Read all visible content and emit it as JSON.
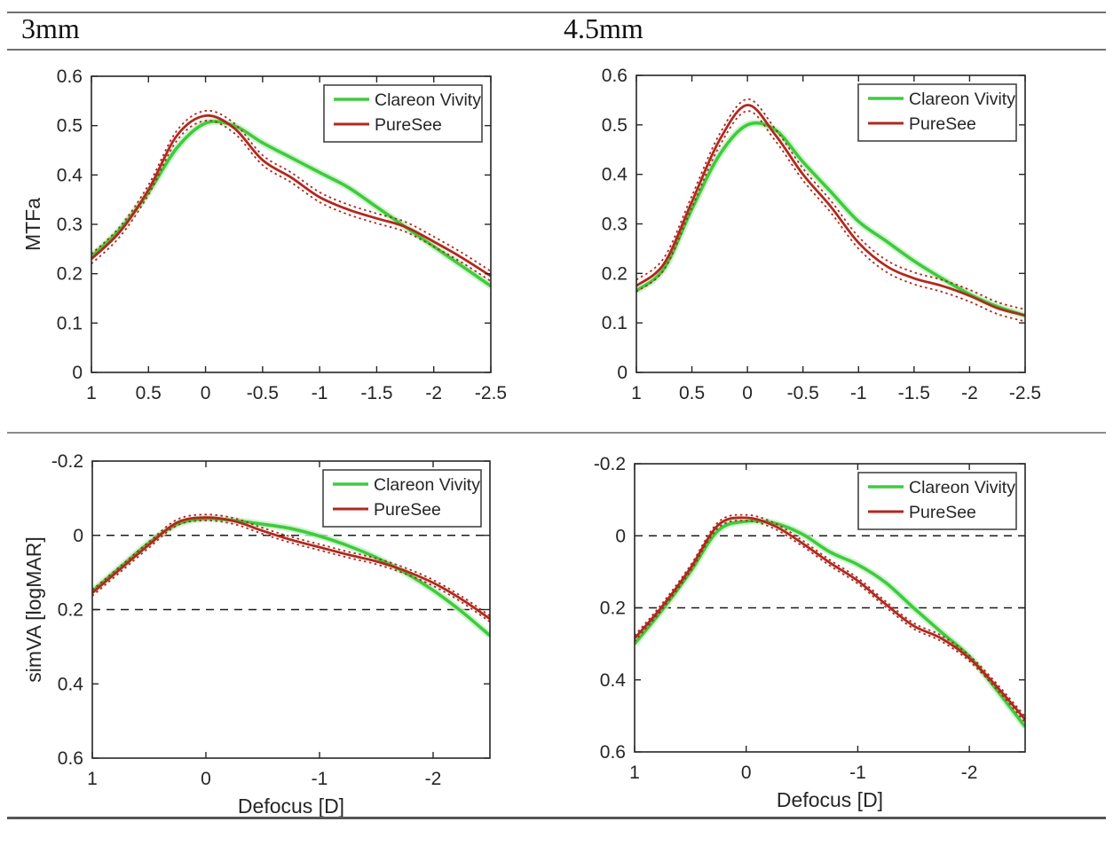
{
  "headers": [
    "3mm",
    "4.5mm"
  ],
  "figure": {
    "x_axis_label": "Defocus [D]",
    "legend_entries": [
      "Clareon Vivity",
      "PureSee"
    ],
    "colors": {
      "clareon_vivity": "#3ecb3e",
      "clareon_vivity_halo": "#c9efc6",
      "puresee": "#b1281e",
      "axis": "#262626",
      "reference_line": "#1a1a1a"
    }
  },
  "chart_data": [
    {
      "id": "mtfa-3mm",
      "type": "line",
      "column_header": "3mm",
      "xlabel": "",
      "ylabel": "MTFa",
      "xlim": [
        1,
        -2.5
      ],
      "ylim_top_to_bottom": [
        0.6,
        0
      ],
      "y_increases_downward": false,
      "grid": false,
      "legend_position": "top-right",
      "ref_lines_y": [],
      "xticks": [
        {
          "v": 1,
          "label": "1"
        },
        {
          "v": 0.5,
          "label": "0.5"
        },
        {
          "v": 0,
          "label": "0"
        },
        {
          "v": -0.5,
          "label": "-0.5"
        },
        {
          "v": -1,
          "label": "-1"
        },
        {
          "v": -1.5,
          "label": "-1.5"
        },
        {
          "v": -2,
          "label": "-2"
        },
        {
          "v": -2.5,
          "label": "-2.5"
        }
      ],
      "yticks": [
        {
          "v": 0,
          "label": "0"
        },
        {
          "v": 0.1,
          "label": "0.1"
        },
        {
          "v": 0.2,
          "label": "0.2"
        },
        {
          "v": 0.3,
          "label": "0.3"
        },
        {
          "v": 0.4,
          "label": "0.4"
        },
        {
          "v": 0.5,
          "label": "0.5"
        },
        {
          "v": 0.6,
          "label": "0.6"
        }
      ],
      "x": [
        1,
        0.75,
        0.5,
        0.25,
        0,
        -0.25,
        -0.5,
        -0.75,
        -1,
        -1.25,
        -1.5,
        -1.75,
        -2,
        -2.25,
        -2.5
      ],
      "series": [
        {
          "name": "Clareon Vivity",
          "color": "#3ecb3e",
          "values": [
            0.235,
            0.29,
            0.365,
            0.455,
            0.505,
            0.5,
            0.465,
            0.435,
            0.405,
            0.375,
            0.335,
            0.295,
            0.255,
            0.215,
            0.175
          ]
        },
        {
          "name": "PureSee",
          "color": "#b1281e",
          "ci_halfwidth": 0.01,
          "values": [
            0.23,
            0.285,
            0.37,
            0.48,
            0.52,
            0.495,
            0.43,
            0.395,
            0.355,
            0.33,
            0.312,
            0.295,
            0.265,
            0.232,
            0.195
          ]
        }
      ]
    },
    {
      "id": "mtfa-45mm",
      "type": "line",
      "column_header": "4.5mm",
      "xlabel": "",
      "ylabel": "",
      "xlim": [
        1,
        -2.5
      ],
      "ylim_top_to_bottom": [
        0.6,
        0
      ],
      "y_increases_downward": false,
      "grid": false,
      "legend_position": "top-right",
      "ref_lines_y": [],
      "xticks": [
        {
          "v": 1,
          "label": "1"
        },
        {
          "v": 0.5,
          "label": "0.5"
        },
        {
          "v": 0,
          "label": "0"
        },
        {
          "v": -0.5,
          "label": "-0.5"
        },
        {
          "v": -1,
          "label": "-1"
        },
        {
          "v": -1.5,
          "label": "-1.5"
        },
        {
          "v": -2,
          "label": "-2"
        },
        {
          "v": -2.5,
          "label": "-2.5"
        }
      ],
      "yticks": [
        {
          "v": 0,
          "label": "0"
        },
        {
          "v": 0.1,
          "label": "0.1"
        },
        {
          "v": 0.2,
          "label": "0.2"
        },
        {
          "v": 0.3,
          "label": "0.3"
        },
        {
          "v": 0.4,
          "label": "0.4"
        },
        {
          "v": 0.5,
          "label": "0.5"
        },
        {
          "v": 0.6,
          "label": "0.6"
        }
      ],
      "x": [
        1,
        0.75,
        0.5,
        0.25,
        0,
        -0.25,
        -0.5,
        -0.75,
        -1,
        -1.25,
        -1.5,
        -1.75,
        -2,
        -2.25,
        -2.5
      ],
      "series": [
        {
          "name": "Clareon Vivity",
          "color": "#3ecb3e",
          "values": [
            0.165,
            0.21,
            0.33,
            0.44,
            0.5,
            0.49,
            0.425,
            0.365,
            0.305,
            0.265,
            0.225,
            0.19,
            0.158,
            0.133,
            0.115
          ]
        },
        {
          "name": "PureSee",
          "color": "#b1281e",
          "ci_halfwidth": 0.012,
          "values": [
            0.175,
            0.22,
            0.345,
            0.47,
            0.54,
            0.48,
            0.4,
            0.335,
            0.262,
            0.215,
            0.19,
            0.175,
            0.155,
            0.13,
            0.115
          ]
        }
      ]
    },
    {
      "id": "simva-3mm",
      "type": "line",
      "column_header": "3mm",
      "xlabel": "Defocus [D]",
      "ylabel": "simVA [logMAR]",
      "xlim": [
        1,
        -2.5
      ],
      "ylim_top_to_bottom": [
        -0.2,
        0.6
      ],
      "y_increases_downward": true,
      "grid": false,
      "legend_position": "top-right",
      "ref_lines_y": [
        0,
        0.2
      ],
      "xticks": [
        {
          "v": 1,
          "label": "1"
        },
        {
          "v": 0,
          "label": "0"
        },
        {
          "v": -1,
          "label": "-1"
        },
        {
          "v": -2,
          "label": "-2"
        }
      ],
      "yticks": [
        {
          "v": -0.2,
          "label": "-0.2"
        },
        {
          "v": 0,
          "label": "0"
        },
        {
          "v": 0.2,
          "label": "0.2"
        },
        {
          "v": 0.4,
          "label": "0.4"
        },
        {
          "v": 0.6,
          "label": "0.6"
        }
      ],
      "x": [
        1,
        0.75,
        0.5,
        0.25,
        0,
        -0.25,
        -0.5,
        -0.75,
        -1,
        -1.25,
        -1.5,
        -1.75,
        -2,
        -2.25,
        -2.5
      ],
      "series": [
        {
          "name": "Clareon Vivity",
          "color": "#3ecb3e",
          "values": [
            0.15,
            0.085,
            0.02,
            -0.03,
            -0.045,
            -0.04,
            -0.03,
            -0.018,
            0.002,
            0.028,
            0.06,
            0.1,
            0.148,
            0.205,
            0.27
          ]
        },
        {
          "name": "PureSee",
          "color": "#b1281e",
          "ci_halfwidth": 0.008,
          "values": [
            0.155,
            0.09,
            0.025,
            -0.035,
            -0.048,
            -0.038,
            -0.012,
            0.012,
            0.032,
            0.052,
            0.07,
            0.095,
            0.128,
            0.172,
            0.225
          ]
        }
      ]
    },
    {
      "id": "simva-45mm",
      "type": "line",
      "column_header": "4.5mm",
      "xlabel": "Defocus [D]",
      "ylabel": "",
      "xlim": [
        1,
        -2.5
      ],
      "ylim_top_to_bottom": [
        -0.2,
        0.6
      ],
      "y_increases_downward": true,
      "grid": false,
      "legend_position": "top-right",
      "ref_lines_y": [
        0,
        0.2
      ],
      "xticks": [
        {
          "v": 1,
          "label": "1"
        },
        {
          "v": 0,
          "label": "0"
        },
        {
          "v": -1,
          "label": "-1"
        },
        {
          "v": -2,
          "label": "-2"
        }
      ],
      "yticks": [
        {
          "v": -0.2,
          "label": "-0.2"
        },
        {
          "v": 0,
          "label": "0"
        },
        {
          "v": 0.2,
          "label": "0.2"
        },
        {
          "v": 0.4,
          "label": "0.4"
        },
        {
          "v": 0.6,
          "label": "0.6"
        }
      ],
      "x": [
        1,
        0.75,
        0.5,
        0.25,
        0,
        -0.25,
        -0.5,
        -0.75,
        -1,
        -1.25,
        -1.5,
        -1.75,
        -2,
        -2.25,
        -2.5
      ],
      "series": [
        {
          "name": "Clareon Vivity",
          "color": "#3ecb3e",
          "values": [
            0.3,
            0.205,
            0.1,
            -0.015,
            -0.04,
            -0.035,
            -0.005,
            0.045,
            0.08,
            0.13,
            0.2,
            0.268,
            0.335,
            0.43,
            0.53
          ]
        },
        {
          "name": "PureSee",
          "color": "#b1281e",
          "ci_halfwidth": 0.008,
          "values": [
            0.285,
            0.195,
            0.09,
            -0.03,
            -0.05,
            -0.028,
            0.02,
            0.075,
            0.125,
            0.19,
            0.25,
            0.285,
            0.34,
            0.42,
            0.51
          ]
        }
      ]
    }
  ]
}
